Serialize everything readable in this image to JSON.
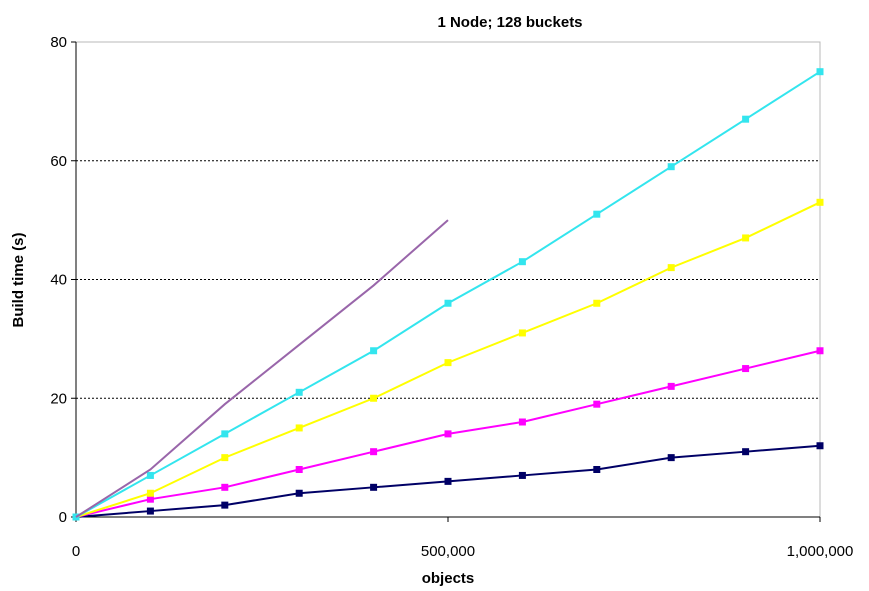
{
  "chart_data": {
    "type": "line",
    "title": "1 Node; 128 buckets",
    "xlabel": "objects",
    "ylabel": "Build time (s)",
    "xlim": [
      0,
      1000000
    ],
    "ylim": [
      0,
      80
    ],
    "x_ticks": [
      0,
      500000,
      1000000
    ],
    "x_tick_labels": [
      "0",
      "500,000",
      "1,000,000"
    ],
    "y_ticks": [
      0,
      20,
      40,
      60,
      80
    ],
    "y_tick_labels": [
      "0",
      "20",
      "40",
      "60",
      "80"
    ],
    "grid": "horizontal dotted",
    "legend": "none",
    "series": [
      {
        "color": "#000066",
        "marker": "square",
        "x": [
          0,
          100000,
          200000,
          300000,
          400000,
          500000,
          600000,
          700000,
          800000,
          900000,
          1000000
        ],
        "y": [
          0,
          1,
          2,
          4,
          5,
          6,
          7,
          8,
          10,
          11,
          12
        ]
      },
      {
        "color": "#ff00ff",
        "marker": "square",
        "x": [
          0,
          100000,
          200000,
          300000,
          400000,
          500000,
          600000,
          700000,
          800000,
          900000,
          1000000
        ],
        "y": [
          0,
          3,
          5,
          8,
          11,
          14,
          16,
          19,
          22,
          25,
          28
        ]
      },
      {
        "color": "#ffff00",
        "marker": "square",
        "x": [
          0,
          100000,
          200000,
          300000,
          400000,
          500000,
          600000,
          700000,
          800000,
          900000,
          1000000
        ],
        "y": [
          0,
          4,
          10,
          15,
          20,
          26,
          31,
          36,
          42,
          47,
          53
        ]
      },
      {
        "color": "#33e5ee",
        "marker": "square",
        "x": [
          0,
          100000,
          200000,
          300000,
          400000,
          500000,
          600000,
          700000,
          800000,
          900000,
          1000000
        ],
        "y": [
          0,
          7,
          14,
          21,
          28,
          36,
          43,
          51,
          59,
          67,
          75
        ]
      },
      {
        "color": "#9966aa",
        "marker": "none",
        "x": [
          0,
          100000,
          200000,
          300000,
          400000,
          500000
        ],
        "y": [
          0,
          8,
          19,
          29,
          39,
          50
        ]
      }
    ]
  }
}
